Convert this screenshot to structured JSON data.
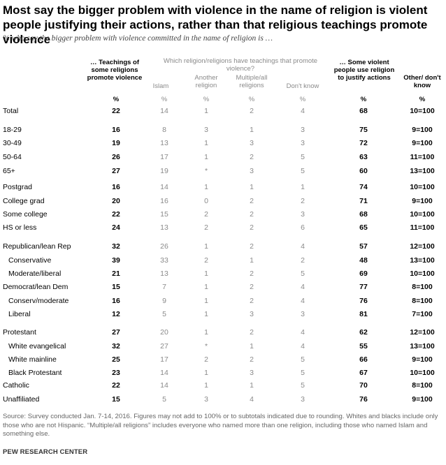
{
  "title": "Most say the bigger problem with violence in the name of religion is violent people justifying their actions, rather than that religious teachings promote violence",
  "subtitle": "% who say the bigger problem with violence committed in the name of religion is …",
  "headers": {
    "teachings": "… Teachings of some religions promote violence",
    "which": "Which religion/religions have teachings that promote violence?",
    "islam": "Islam",
    "another": "Another religion",
    "multiple": "Multiple/all religions",
    "dontknow": "Don't know",
    "violent": "… Some violent people use religion to justify actions",
    "other": "Other/ don't know"
  },
  "pct": "%",
  "rows": [
    {
      "label": "Total",
      "indent": false,
      "v": [
        "22",
        "14",
        "1",
        "2",
        "4",
        "68",
        "10=100"
      ]
    },
    {
      "label": "18-29",
      "indent": false,
      "v": [
        "16",
        "8",
        "3",
        "1",
        "3",
        "75",
        "9=100"
      ]
    },
    {
      "label": "30-49",
      "indent": false,
      "v": [
        "19",
        "13",
        "1",
        "3",
        "3",
        "72",
        "9=100"
      ]
    },
    {
      "label": "50-64",
      "indent": false,
      "v": [
        "26",
        "17",
        "1",
        "2",
        "5",
        "63",
        "11=100"
      ]
    },
    {
      "label": "65+",
      "indent": false,
      "v": [
        "27",
        "19",
        "*",
        "3",
        "5",
        "60",
        "13=100"
      ]
    },
    {
      "label": "Postgrad",
      "indent": false,
      "v": [
        "16",
        "14",
        "1",
        "1",
        "1",
        "74",
        "10=100"
      ]
    },
    {
      "label": "College grad",
      "indent": false,
      "v": [
        "20",
        "16",
        "0",
        "2",
        "2",
        "71",
        "9=100"
      ]
    },
    {
      "label": "Some college",
      "indent": false,
      "v": [
        "22",
        "15",
        "2",
        "2",
        "3",
        "68",
        "10=100"
      ]
    },
    {
      "label": "HS or less",
      "indent": false,
      "v": [
        "24",
        "13",
        "2",
        "2",
        "6",
        "65",
        "11=100"
      ]
    },
    {
      "label": "Republican/lean Rep",
      "indent": false,
      "v": [
        "32",
        "26",
        "1",
        "2",
        "4",
        "57",
        "12=100"
      ]
    },
    {
      "label": "Conservative",
      "indent": true,
      "v": [
        "39",
        "33",
        "2",
        "1",
        "2",
        "48",
        "13=100"
      ]
    },
    {
      "label": "Moderate/liberal",
      "indent": true,
      "v": [
        "21",
        "13",
        "1",
        "2",
        "5",
        "69",
        "10=100"
      ]
    },
    {
      "label": "Democrat/lean Dem",
      "indent": false,
      "v": [
        "15",
        "7",
        "1",
        "2",
        "4",
        "77",
        "8=100"
      ]
    },
    {
      "label": "Conserv/moderate",
      "indent": true,
      "v": [
        "16",
        "9",
        "1",
        "2",
        "4",
        "76",
        "8=100"
      ]
    },
    {
      "label": "Liberal",
      "indent": true,
      "v": [
        "12",
        "5",
        "1",
        "3",
        "3",
        "81",
        "7=100"
      ]
    },
    {
      "label": "Protestant",
      "indent": false,
      "v": [
        "27",
        "20",
        "1",
        "2",
        "4",
        "62",
        "12=100"
      ]
    },
    {
      "label": "White evangelical",
      "indent": true,
      "v": [
        "32",
        "27",
        "*",
        "1",
        "4",
        "55",
        "13=100"
      ]
    },
    {
      "label": "White mainline",
      "indent": true,
      "v": [
        "25",
        "17",
        "2",
        "2",
        "5",
        "66",
        "9=100"
      ]
    },
    {
      "label": "Black Protestant",
      "indent": true,
      "v": [
        "23",
        "14",
        "1",
        "3",
        "5",
        "67",
        "10=100"
      ]
    },
    {
      "label": "Catholic",
      "indent": false,
      "v": [
        "22",
        "14",
        "1",
        "1",
        "5",
        "70",
        "8=100"
      ]
    },
    {
      "label": "Unaffiliated",
      "indent": false,
      "v": [
        "15",
        "5",
        "3",
        "4",
        "3",
        "76",
        "9=100"
      ]
    }
  ],
  "note": "Source: Survey conducted Jan. 7-14, 2016. Figures may not add to 100% or to subtotals indicated due to rounding. Whites and blacks include only those who are not Hispanic. “Multiple/all religions” includes everyone who named more than one religion, including those who named Islam and something else.",
  "source": "PEW RESEARCH CENTER",
  "colors": {
    "text": "#000000",
    "secondary": "#8a8a8a",
    "note": "#666666"
  }
}
